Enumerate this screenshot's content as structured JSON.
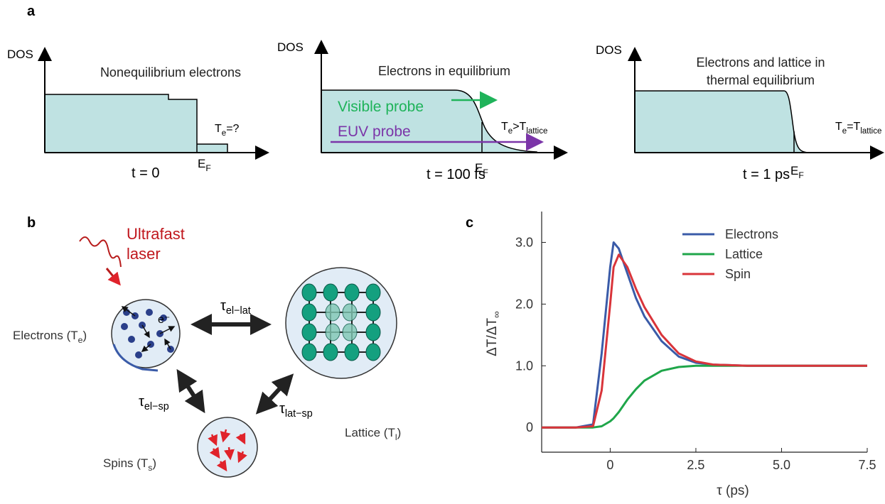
{
  "panel_a": {
    "label": "a",
    "plots": [
      {
        "y_axis": "DOS",
        "title": [
          "Nonequilibrium electrons"
        ],
        "temperature": [
          "T",
          "e",
          "=?"
        ],
        "fermi": [
          "E",
          "F"
        ],
        "time": "t = 0"
      },
      {
        "y_axis": "DOS",
        "title": [
          "Electrons in equilibrium"
        ],
        "visible_probe": "Visible probe",
        "euv_probe": "EUV probe",
        "temperature": [
          "T",
          "e",
          ">T",
          "lattice"
        ],
        "fermi": [
          "E",
          "F"
        ],
        "time": "t = 100 fs"
      },
      {
        "y_axis": "DOS",
        "title": [
          "Electrons and lattice in",
          "thermal equilibrium"
        ],
        "temperature": [
          "T",
          "e",
          "=T",
          "lattice"
        ],
        "fermi": [
          "E",
          "F"
        ],
        "time": "t = 1 ps"
      }
    ]
  },
  "panel_b": {
    "label": "b",
    "laser": [
      "Ultrafast",
      "laser"
    ],
    "electron_symbol": "e⁻",
    "electrons": [
      "Electrons (T",
      "e",
      ")"
    ],
    "lattice": [
      "Lattice (T",
      "l",
      ")"
    ],
    "spins": [
      "Spins (T",
      "s",
      ")"
    ],
    "tau_el_lat": [
      "τ",
      "el−lat"
    ],
    "tau_el_sp": [
      "τ",
      "el−sp"
    ],
    "tau_lat_sp": [
      "τ",
      "lat−sp"
    ]
  },
  "panel_c": {
    "label": "c"
  },
  "chart_data": {
    "type": "line",
    "x_label": "τ (ps)",
    "y_label": [
      "ΔT/ΔT",
      "∞"
    ],
    "x": [
      -2,
      -1,
      -0.5,
      -0.25,
      0,
      0.1,
      0.25,
      0.5,
      0.75,
      1,
      1.5,
      2,
      2.5,
      3,
      4,
      5,
      7.5
    ],
    "series": [
      {
        "name": "Electrons",
        "color": "#3a5ba8",
        "values": [
          0,
          0,
          0.05,
          1.2,
          2.6,
          3.0,
          2.9,
          2.5,
          2.1,
          1.8,
          1.4,
          1.15,
          1.05,
          1.02,
          1.0,
          1.0,
          1.0
        ]
      },
      {
        "name": "Lattice",
        "color": "#1fa64a",
        "values": [
          0,
          0,
          0,
          0.02,
          0.1,
          0.15,
          0.25,
          0.45,
          0.62,
          0.76,
          0.92,
          0.98,
          1.0,
          1.0,
          1.0,
          1.0,
          1.0
        ]
      },
      {
        "name": "Spin",
        "color": "#d9343a",
        "values": [
          0,
          0,
          0.02,
          0.6,
          2.0,
          2.6,
          2.8,
          2.6,
          2.25,
          1.95,
          1.5,
          1.2,
          1.07,
          1.02,
          1.0,
          1.0,
          1.0
        ]
      }
    ],
    "xlim": [
      -2,
      7.5
    ],
    "ylim": [
      -0.4,
      3.5
    ],
    "xticks": [
      0,
      {
        "value": 2.5,
        "label": "2.5"
      },
      {
        "value": 5,
        "label": "5.0"
      },
      {
        "value": 7.5,
        "label": "7.5"
      }
    ],
    "yticks": [
      0,
      {
        "value": 1,
        "label": "1.0"
      },
      {
        "value": 2,
        "label": "2.0"
      },
      {
        "value": 3,
        "label": "3.0"
      }
    ]
  }
}
